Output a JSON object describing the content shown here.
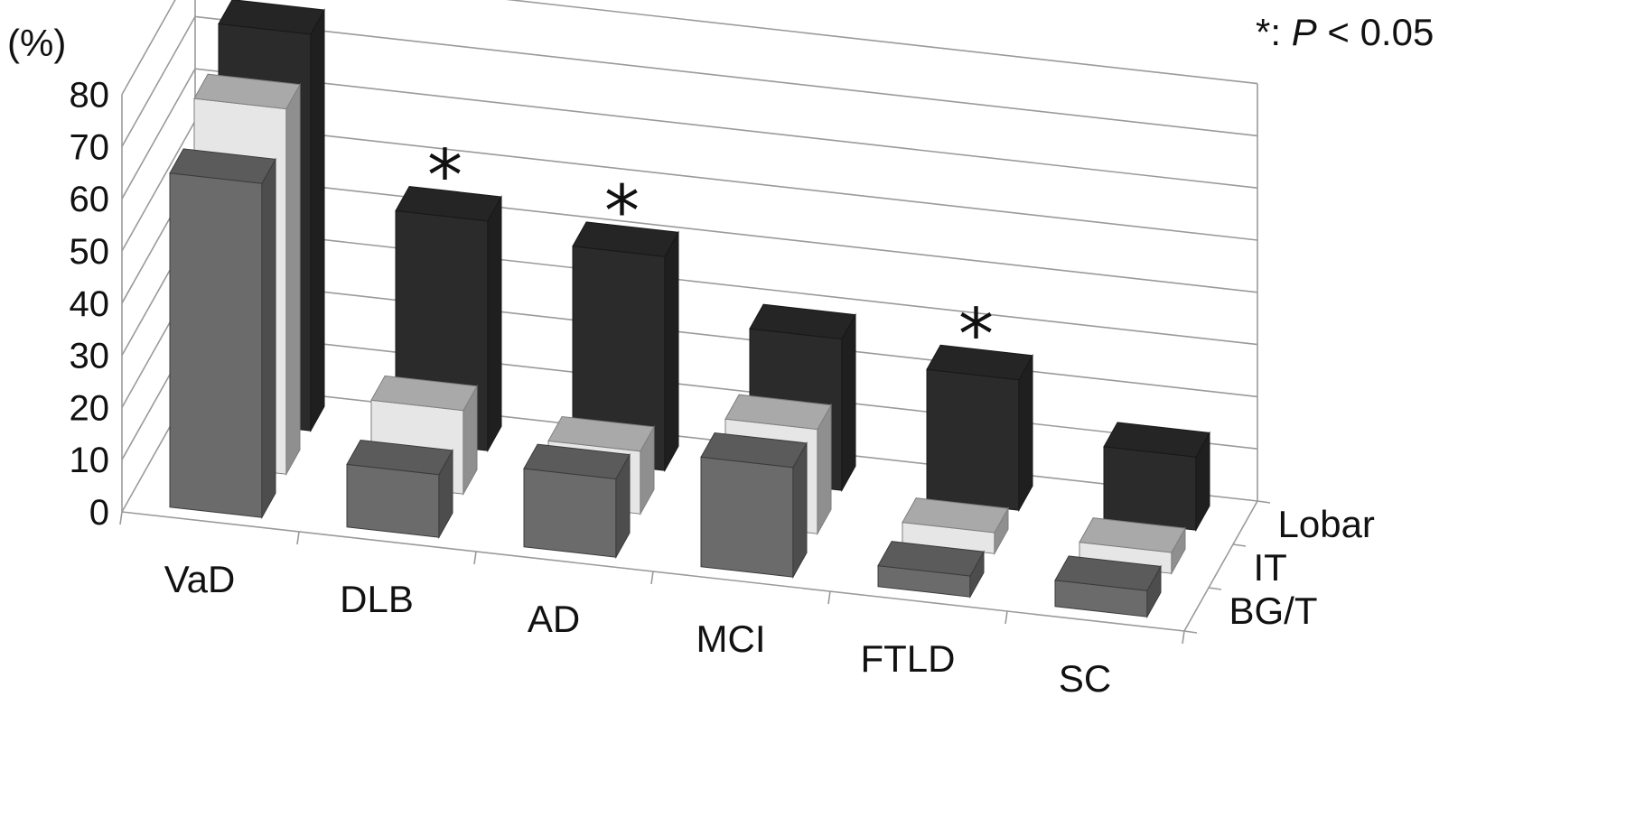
{
  "chart_data": {
    "type": "bar",
    "subtype": "3d-clustered-column",
    "title": "",
    "ylabel": "(%)",
    "ylim": [
      0,
      80
    ],
    "yticks": [
      0,
      10,
      20,
      30,
      40,
      50,
      60,
      70,
      80
    ],
    "categories": [
      "VaD",
      "DLB",
      "AD",
      "MCI",
      "FTLD",
      "SC"
    ],
    "series": [
      {
        "name": "BG/T",
        "color": "#6b6b6b",
        "values": [
          64,
          12,
          15,
          21,
          4,
          5
        ]
      },
      {
        "name": "IT",
        "color": "#e6e6e6",
        "values": [
          70,
          16,
          12,
          20,
          4,
          4
        ]
      },
      {
        "name": "Lobar",
        "color": "#2b2b2b",
        "values": [
          76,
          44,
          41,
          29,
          25,
          14
        ]
      }
    ],
    "significance": {
      "marker": "*",
      "note_prefix": "*: ",
      "note_italic": "P",
      "note_suffix": " < 0.05",
      "series": "Lobar",
      "categories": [
        "DLB",
        "AD",
        "FTLD"
      ]
    },
    "grid": true
  }
}
